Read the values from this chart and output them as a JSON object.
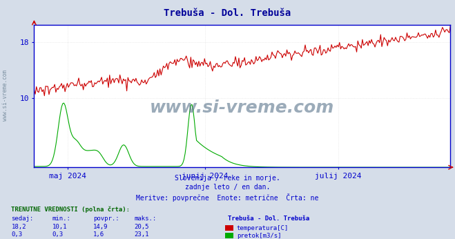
{
  "title": "Trebuša - Dol. Trebuša",
  "title_color": "#000099",
  "bg_color": "#d5dde9",
  "plot_bg_color": "#ffffff",
  "grid_color": "#cccccc",
  "axis_color": "#0000cc",
  "text_color": "#0000cc",
  "watermark": "www.si-vreme.com",
  "subtitle_lines": [
    "Slovenija / reke in morje.",
    "zadnje leto / en dan.",
    "Meritve: povprečne  Enote: metrične  Črta: ne"
  ],
  "x_labels": [
    "maj 2024",
    "junij 2024",
    "julij 2024"
  ],
  "y_ticks": [
    10,
    18
  ],
  "y_min": 0,
  "y_max": 20.5,
  "temp_color": "#cc0000",
  "flow_color": "#00aa00",
  "legend_title": "Trebuša - Dol. Trebuša",
  "legend_items": [
    {
      "label": "temperatura[C]",
      "color": "#cc0000"
    },
    {
      "label": "pretok[m3/s]",
      "color": "#00aa00"
    }
  ],
  "table_header": "TRENUTNE VREDNOSTI (polna črta):",
  "table_cols": [
    "sedaj:",
    "min.:",
    "povpr.:",
    "maks.:"
  ],
  "table_row1": [
    "18,2",
    "10,1",
    "14,9",
    "20,5"
  ],
  "table_row2": [
    "0,3",
    "0,3",
    "1,6",
    "23,1"
  ],
  "n_points": 730,
  "temp_seed": 1234,
  "flow_seed": 5678,
  "left_sidebar_text": "www.si-vreme.com"
}
